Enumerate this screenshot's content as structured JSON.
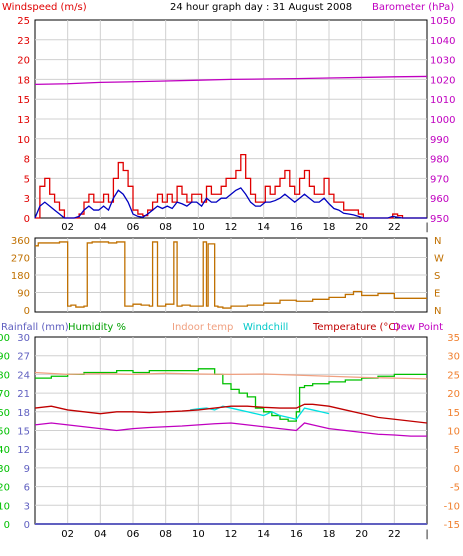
{
  "title": "24 hour graph day : 31 August 2008",
  "colors": {
    "wind": "#e00000",
    "wind_avg": "#0000c0",
    "baro": "#c000c0",
    "dir": "#c07000",
    "rain": "#6060c0",
    "humidity": "#00c000",
    "indoor": "#f0a080",
    "windchill": "#00e0e0",
    "temp": "#c00000",
    "dewpoint": "#c000c0",
    "grid": "#d0d0d0"
  },
  "chart_data": [
    {
      "type": "line",
      "title": "24 hour graph day : 31 August 2008",
      "left_axis_label": "Windspeed (m/s)",
      "right_axis_label": "Barometer (hPa)",
      "left_ticks": [
        "0",
        "3",
        "5",
        "8",
        "10",
        "13",
        "15",
        "18",
        "20",
        "23",
        "25"
      ],
      "right_ticks": [
        "950",
        "960",
        "970",
        "980",
        "990",
        "1000",
        "1010",
        "1020",
        "1030",
        "1040",
        "1050"
      ],
      "x_ticks": [
        "02",
        "04",
        "06",
        "08",
        "10",
        "12",
        "14",
        "16",
        "18",
        "20",
        "22"
      ],
      "ylim_left": [
        0,
        25
      ],
      "ylim_right": [
        950,
        1050
      ],
      "series": [
        {
          "key": "wind_gust",
          "x": [
            0,
            0.3,
            0.6,
            0.9,
            1.2,
            1.5,
            1.8,
            2.1,
            2.4,
            2.7,
            3,
            3.3,
            3.6,
            3.9,
            4.2,
            4.5,
            4.8,
            5.1,
            5.4,
            5.7,
            6,
            6.3,
            6.6,
            6.9,
            7.2,
            7.5,
            7.8,
            8.1,
            8.4,
            8.7,
            9,
            9.3,
            9.6,
            9.9,
            10.2,
            10.5,
            10.8,
            11.1,
            11.4,
            11.7,
            12,
            12.3,
            12.6,
            12.9,
            13.2,
            13.5,
            13.8,
            14.1,
            14.4,
            14.7,
            15,
            15.3,
            15.6,
            15.9,
            16.2,
            16.5,
            16.8,
            17.1,
            17.4,
            17.7,
            18,
            18.3,
            18.6,
            18.9,
            19.2,
            19.5,
            19.8,
            20.1,
            20.4,
            20.7,
            21,
            21.3,
            21.6,
            21.9,
            22.2,
            22.5,
            22.8,
            23.1,
            23.4,
            23.7,
            24
          ],
          "y": [
            0,
            4,
            5,
            3,
            2,
            1,
            0,
            0,
            0,
            0.5,
            2,
            3,
            2,
            2,
            3,
            2,
            5,
            7,
            6,
            4,
            1,
            0.5,
            0.3,
            1,
            2,
            3,
            2,
            3,
            2,
            4,
            3,
            2,
            3,
            3,
            2,
            4,
            3,
            3,
            4,
            5,
            5,
            6,
            8,
            5,
            3,
            2,
            2,
            4,
            3,
            4,
            5,
            6,
            4,
            3,
            5,
            6,
            4,
            3,
            3,
            5,
            3,
            2,
            2,
            1,
            1,
            1,
            0.5,
            0,
            0,
            0,
            0,
            0,
            0,
            0.5,
            0.3,
            0,
            0,
            0,
            0,
            0,
            0
          ]
        },
        {
          "key": "wind_avg",
          "x": [
            0,
            0.3,
            0.6,
            0.9,
            1.2,
            1.5,
            1.8,
            2.1,
            2.4,
            2.7,
            3,
            3.3,
            3.6,
            3.9,
            4.2,
            4.5,
            4.8,
            5.1,
            5.4,
            5.7,
            6,
            6.3,
            6.6,
            6.9,
            7.2,
            7.5,
            7.8,
            8.1,
            8.4,
            8.7,
            9,
            9.3,
            9.6,
            9.9,
            10.2,
            10.5,
            10.8,
            11.1,
            11.4,
            11.7,
            12,
            12.3,
            12.6,
            12.9,
            13.2,
            13.5,
            13.8,
            14.1,
            14.4,
            14.7,
            15,
            15.3,
            15.6,
            15.9,
            16.2,
            16.5,
            16.8,
            17.1,
            17.4,
            17.7,
            18,
            18.3,
            18.6,
            18.9,
            19.2,
            19.5,
            19.8,
            20.1,
            20.4,
            20.7,
            21,
            21.3,
            21.6,
            21.9,
            22.2,
            22.5,
            22.8,
            23.1,
            23.4,
            23.7,
            24
          ],
          "y": [
            0,
            1.5,
            2,
            1.5,
            1,
            0.5,
            0,
            0,
            0,
            0.2,
            1,
            1.5,
            1,
            1,
            1.5,
            1,
            2.5,
            3.5,
            3,
            2,
            0.5,
            0.2,
            0.1,
            0.5,
            1,
            1.5,
            1.2,
            1.5,
            1.2,
            2,
            1.8,
            1.5,
            2,
            2,
            1.5,
            2.5,
            2,
            2,
            2.5,
            2.5,
            3,
            3.5,
            3.8,
            3,
            2,
            1.5,
            1.5,
            2,
            2,
            2.2,
            2.5,
            3,
            2.5,
            2,
            2.5,
            3,
            2.5,
            2,
            2,
            2.5,
            1.8,
            1.2,
            1,
            0.6,
            0.5,
            0.4,
            0.2,
            0,
            0,
            0,
            0,
            0,
            0,
            0.2,
            0.1,
            0,
            0,
            0,
            0,
            0,
            0
          ]
        },
        {
          "key": "barometer",
          "x": [
            0,
            2,
            4,
            6,
            8,
            10,
            12,
            14,
            16,
            18,
            20,
            22,
            24
          ],
          "y": [
            1017.5,
            1017.8,
            1018.5,
            1018.8,
            1019.2,
            1019.6,
            1020.0,
            1020.2,
            1020.4,
            1020.7,
            1021.0,
            1021.3,
            1021.5
          ]
        }
      ]
    },
    {
      "type": "line",
      "left_ticks": [
        "360",
        "270",
        "180",
        "90",
        "0"
      ],
      "right_ticks": [
        "N",
        "W",
        "S",
        "E",
        "N"
      ],
      "ylim": [
        0,
        360
      ],
      "series": [
        {
          "key": "wind_dir",
          "x": [
            0,
            0.2,
            1.5,
            2,
            2.2,
            2.5,
            3,
            3.2,
            3.5,
            4,
            4.2,
            4.5,
            5,
            5.5,
            6,
            6.5,
            7,
            7.2,
            7.5,
            8,
            8.3,
            8.5,
            8.7,
            9,
            9.5,
            10,
            10.3,
            10.5,
            10.6,
            11,
            11.2,
            11.5,
            12,
            13,
            14,
            15,
            16,
            17,
            18,
            19,
            19.5,
            20,
            21,
            22,
            23,
            24
          ],
          "y": [
            330,
            345,
            350,
            20,
            25,
            15,
            20,
            345,
            350,
            350,
            350,
            345,
            350,
            20,
            30,
            25,
            20,
            350,
            20,
            30,
            30,
            350,
            20,
            25,
            20,
            20,
            350,
            20,
            340,
            20,
            15,
            10,
            20,
            25,
            35,
            50,
            45,
            55,
            65,
            80,
            95,
            75,
            85,
            60,
            60,
            60
          ]
        }
      ]
    },
    {
      "type": "line",
      "legend": [
        "Rainfall (mm)",
        "Humidity %",
        "Indoor temp",
        "Windchill",
        "Temperature (°C)",
        "Dew Point"
      ],
      "rain_ticks": [
        "0",
        "3",
        "6",
        "9",
        "12",
        "15",
        "18",
        "21",
        "24",
        "27",
        "30"
      ],
      "humidity_ticks": [
        "0",
        "10",
        "20",
        "30",
        "40",
        "50",
        "60",
        "70",
        "80",
        "90",
        "100"
      ],
      "temp_ticks": [
        "-15",
        "-10",
        "-5",
        "0",
        "5",
        "10",
        "15",
        "20",
        "25",
        "30",
        "35"
      ],
      "ylim_temp": [
        -15,
        35
      ],
      "series": [
        {
          "key": "rainfall",
          "x": [
            0,
            24
          ],
          "y": [
            0,
            0
          ]
        },
        {
          "key": "humidity",
          "x": [
            0,
            1,
            2,
            3,
            4,
            5,
            6,
            7,
            8,
            9,
            10,
            11,
            11.5,
            12,
            12.5,
            13,
            13.5,
            14,
            14.5,
            15,
            15.5,
            16,
            16.2,
            16.5,
            17,
            18,
            19,
            20,
            21,
            22,
            23,
            24
          ],
          "y": [
            78,
            79,
            80,
            81,
            81,
            82,
            81,
            82,
            82,
            82,
            83,
            80,
            75,
            72,
            70,
            68,
            62,
            60,
            58,
            56,
            55,
            60,
            73,
            74,
            75,
            76,
            77,
            78,
            79,
            80,
            80,
            80
          ]
        },
        {
          "key": "indoor",
          "x": [
            0,
            2,
            4,
            6,
            8,
            10,
            12,
            14,
            16,
            18,
            20,
            22,
            24
          ],
          "y": [
            25.5,
            25,
            25.2,
            25,
            25.3,
            25.1,
            25,
            25.1,
            24.8,
            24.5,
            24.2,
            24,
            23.8
          ]
        },
        {
          "key": "windchill",
          "x": [
            9.5,
            10,
            10.5,
            11,
            11.5,
            12,
            12.5,
            13,
            13.5,
            14,
            14.5,
            15,
            15.5,
            16,
            16.5,
            17,
            17.5,
            18
          ],
          "y": [
            15.5,
            15.8,
            16,
            15.5,
            16.5,
            16,
            15.5,
            15,
            14.5,
            14,
            15,
            14,
            13.5,
            13,
            16,
            15.5,
            15,
            14.5
          ]
        },
        {
          "key": "temperature",
          "x": [
            0,
            1,
            2,
            3,
            4,
            5,
            6,
            7,
            8,
            9,
            10,
            11,
            12,
            13,
            14,
            15,
            16,
            16.5,
            17,
            18,
            19,
            20,
            21,
            22,
            23,
            24
          ],
          "y": [
            16,
            16.5,
            15.5,
            15,
            14.5,
            15,
            15,
            14.8,
            15,
            15.2,
            15.5,
            16,
            16.5,
            16.5,
            16.2,
            16,
            16,
            17,
            17,
            16.5,
            15.5,
            14.5,
            13.5,
            13,
            12.5,
            12
          ]
        },
        {
          "key": "dewpoint",
          "x": [
            0,
            1,
            2,
            3,
            4,
            5,
            6,
            7,
            8,
            9,
            10,
            11,
            12,
            13,
            14,
            15,
            16,
            16.5,
            17,
            18,
            19,
            20,
            21,
            22,
            23,
            24
          ],
          "y": [
            11.5,
            12,
            11.5,
            11,
            10.5,
            10,
            10.5,
            10.8,
            11,
            11.2,
            11.5,
            11.8,
            12,
            11.5,
            11,
            10.5,
            10,
            12,
            11.5,
            10.5,
            10,
            9.5,
            9,
            8.8,
            8.5,
            8.5
          ]
        }
      ]
    }
  ]
}
